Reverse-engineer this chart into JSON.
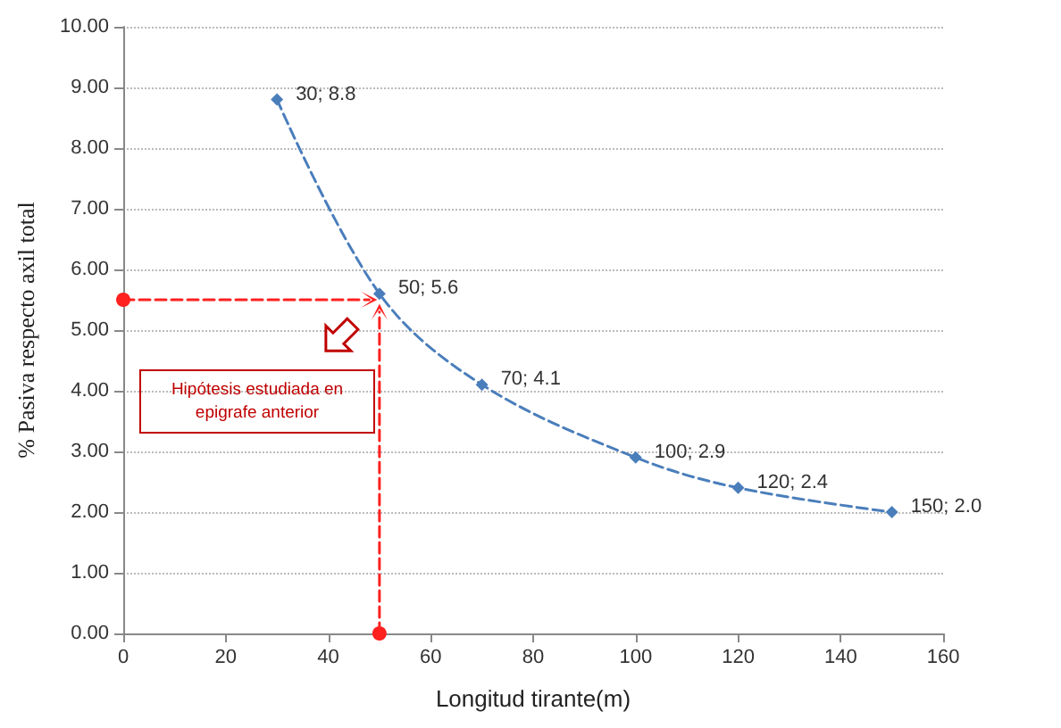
{
  "chart_data": {
    "type": "line",
    "xlabel": "Longitud tirante(m)",
    "ylabel": "% Pasiva respecto axil total",
    "series": [
      {
        "color": "#4a7ebb",
        "x": [
          30,
          50,
          70,
          100,
          120,
          150
        ],
        "values": [
          8.8,
          5.6,
          4.1,
          2.9,
          2.4,
          2.0
        ],
        "value_labels": [
          "30; 8.8",
          "50; 5.6",
          "70; 4.1",
          "100; 2.9",
          "120; 2.4",
          "150; 2.0"
        ],
        "marker": "diamond",
        "line_style": "dashed"
      },
      {
        "color": "#ff2020",
        "x": [
          0,
          48
        ],
        "values": [
          5.5,
          5.5
        ],
        "marker": "circle",
        "line_style": "dashed"
      },
      {
        "color": "#ff2020",
        "x": [
          50,
          50
        ],
        "values": [
          0,
          5.3
        ],
        "marker": "circle",
        "line_style": "dashed"
      }
    ],
    "annotations": [
      "Hipótesis estudiada en epigrafe anterior"
    ],
    "xlim": [
      0,
      160
    ],
    "xticks": [
      0,
      20,
      40,
      60,
      80,
      100,
      120,
      140,
      160
    ],
    "ylim": [
      0,
      10
    ],
    "yticks": [
      {
        "value": 0,
        "label": "0.00"
      },
      {
        "value": 1,
        "label": "1.00"
      },
      {
        "value": 2,
        "label": "2.00"
      },
      {
        "value": 3,
        "label": "3.00"
      },
      {
        "value": 4,
        "label": "4.00"
      },
      {
        "value": 5,
        "label": "5.00"
      },
      {
        "value": 6,
        "label": "6.00"
      },
      {
        "value": 7,
        "label": "7.00"
      },
      {
        "value": 8,
        "label": "8.00"
      },
      {
        "value": 9,
        "label": "9.00"
      },
      {
        "value": 10,
        "label": "10.00"
      }
    ],
    "grid": "y"
  }
}
